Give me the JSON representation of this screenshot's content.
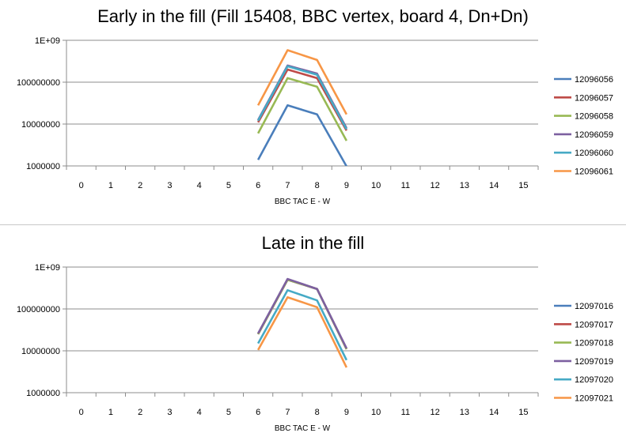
{
  "chart_data": [
    {
      "type": "line",
      "title": "Early in the fill (Fill 15408, BBC vertex, board 4, Dn+Dn)",
      "xlabel": "BBC TAC E - W",
      "ylabel": "",
      "yscale": "log",
      "ylim": [
        1000000,
        1000000000
      ],
      "ytick_labels": [
        "1E+09",
        "100000000",
        "10000000",
        "1000000"
      ],
      "categories": [
        "0",
        "1",
        "2",
        "3",
        "4",
        "5",
        "6",
        "7",
        "8",
        "9",
        "10",
        "11",
        "12",
        "13",
        "14",
        "15"
      ],
      "grid": true,
      "legend_placement": "right",
      "series": [
        {
          "name": "12096056",
          "color": "#4a7ebb",
          "x": [
            6,
            7,
            8,
            9
          ],
          "values": [
            1400000,
            28000000,
            17000000,
            980000
          ]
        },
        {
          "name": "12096057",
          "color": "#be4b48",
          "x": [
            6,
            7,
            8,
            9
          ],
          "values": [
            11000000,
            200000000,
            125000000,
            7000000
          ]
        },
        {
          "name": "12096058",
          "color": "#98b954",
          "x": [
            6,
            7,
            8,
            9
          ],
          "values": [
            6000000,
            125000000,
            78000000,
            4000000
          ]
        },
        {
          "name": "12096059",
          "color": "#7d60a0",
          "x": [
            6,
            7,
            8,
            9
          ],
          "values": [
            12500000,
            250000000,
            160000000,
            8000000
          ]
        },
        {
          "name": "12096060",
          "color": "#46aac5",
          "x": [
            6,
            7,
            8,
            9
          ],
          "values": [
            12000000,
            240000000,
            150000000,
            7500000
          ]
        },
        {
          "name": "12096061",
          "color": "#f79646",
          "x": [
            6,
            7,
            8,
            9
          ],
          "values": [
            28000000,
            580000000,
            340000000,
            17000000
          ]
        }
      ]
    },
    {
      "type": "line",
      "title": "Late in the fill",
      "xlabel": "BBC TAC E - W",
      "ylabel": "",
      "yscale": "log",
      "ylim": [
        1000000,
        1000000000
      ],
      "ytick_labels": [
        "1E+09",
        "100000000",
        "10000000",
        "1000000"
      ],
      "categories": [
        "0",
        "1",
        "2",
        "3",
        "4",
        "5",
        "6",
        "7",
        "8",
        "9",
        "10",
        "11",
        "12",
        "13",
        "14",
        "15"
      ],
      "grid": true,
      "legend_placement": "right",
      "series": [
        {
          "name": "12097016",
          "color": "#4a7ebb",
          "x": [
            6,
            7,
            8,
            9
          ],
          "values": [
            25000000,
            500000000,
            300000000,
            11000000
          ]
        },
        {
          "name": "12097017",
          "color": "#be4b48",
          "x": [
            6,
            7,
            8,
            9
          ],
          "values": [
            25000000,
            500000000,
            300000000,
            11000000
          ]
        },
        {
          "name": "12097018",
          "color": "#98b954",
          "x": [
            6,
            7,
            8,
            9
          ],
          "values": [
            25000000,
            500000000,
            300000000,
            11000000
          ]
        },
        {
          "name": "12097019",
          "color": "#7d60a0",
          "x": [
            6,
            7,
            8,
            9
          ],
          "values": [
            26000000,
            520000000,
            300000000,
            11500000
          ]
        },
        {
          "name": "12097020",
          "color": "#46aac5",
          "x": [
            6,
            7,
            8,
            9
          ],
          "values": [
            15000000,
            280000000,
            160000000,
            6000000
          ]
        },
        {
          "name": "12097021",
          "color": "#f79646",
          "x": [
            6,
            7,
            8,
            9
          ],
          "values": [
            10500000,
            190000000,
            110000000,
            4000000
          ]
        }
      ]
    }
  ]
}
